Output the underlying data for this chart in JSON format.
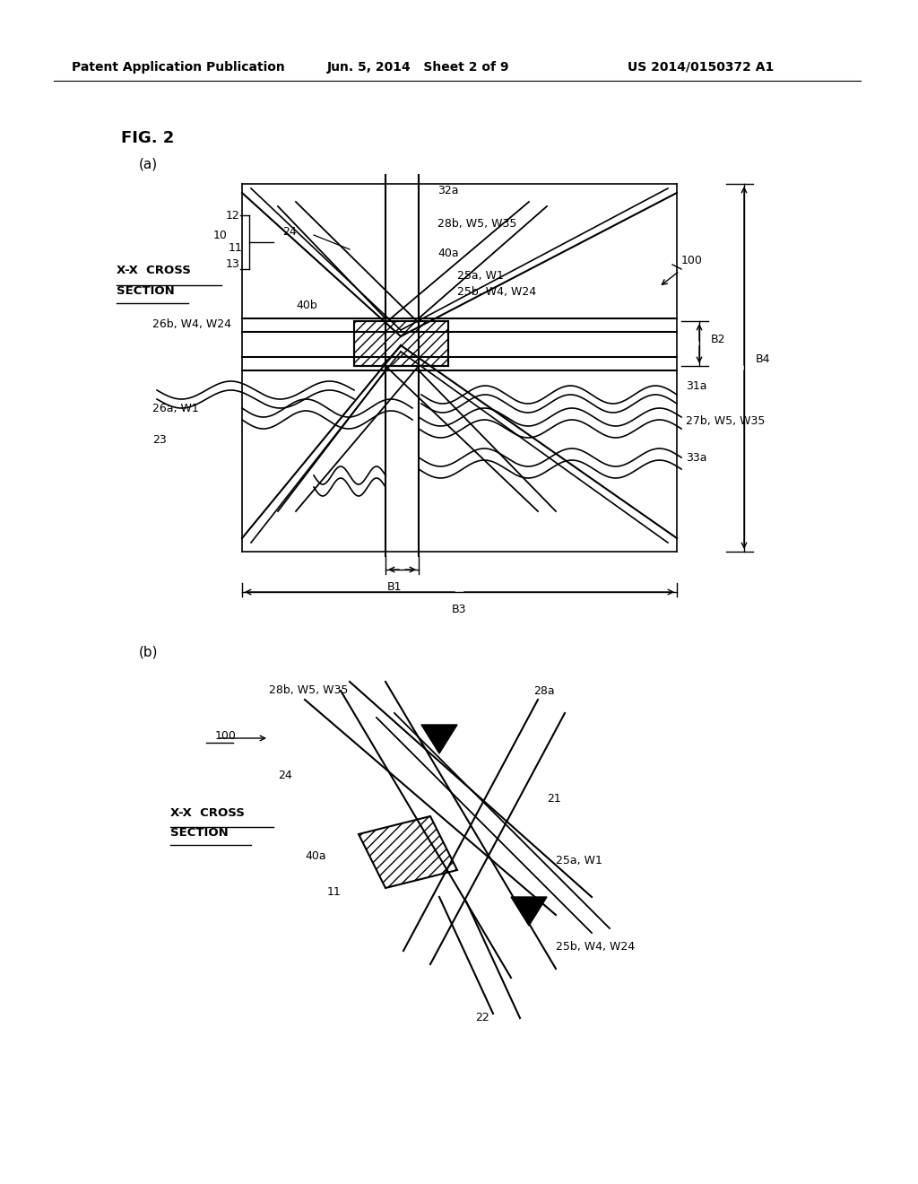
{
  "bg_color": "#ffffff",
  "header_left": "Patent Application Publication",
  "header_mid": "Jun. 5, 2014   Sheet 2 of 9",
  "header_right": "US 2014/0150372 A1",
  "fig_label": "FIG. 2",
  "sub_a": "(a)",
  "sub_b": "(b)"
}
